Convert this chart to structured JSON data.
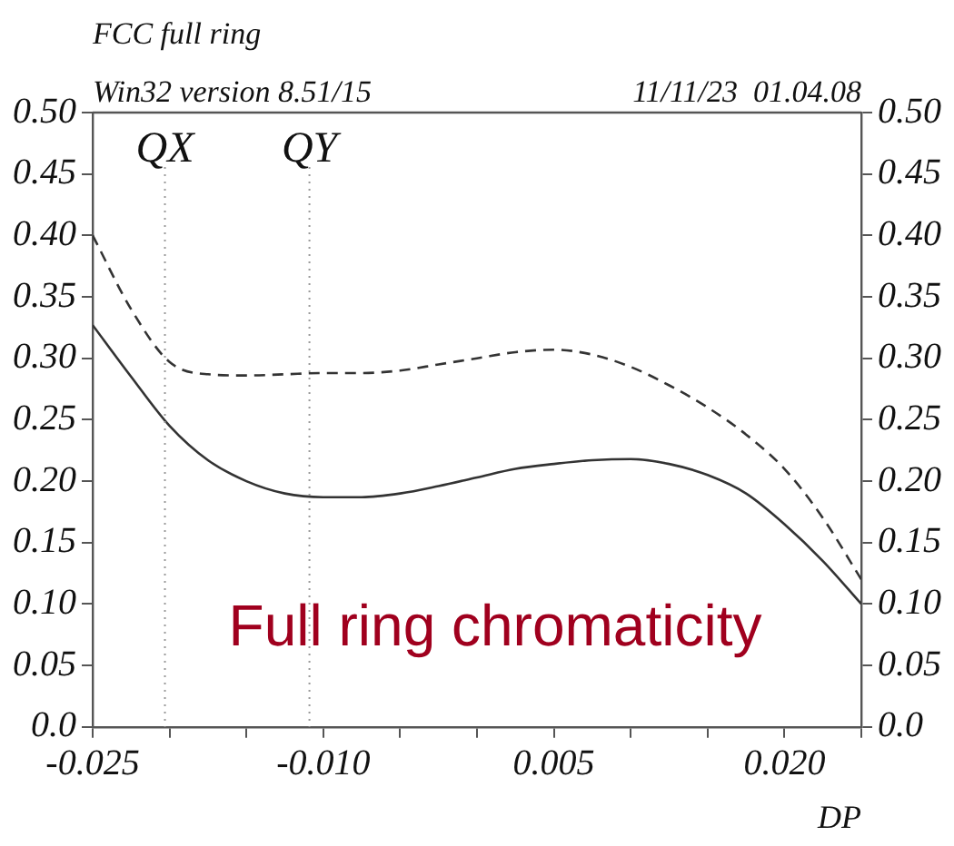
{
  "chart_data": {
    "type": "line",
    "title": "FCC full ring",
    "subtitle": "Win32 version 8.51/15",
    "xlabel": "DP",
    "annotations": [
      "11/11/23  01.04.08",
      "Full ring chromaticity"
    ],
    "x": [
      -0.025,
      -0.0225,
      -0.02,
      -0.0175,
      -0.015,
      -0.0125,
      -0.01,
      -0.0075,
      -0.005,
      -0.0025,
      0,
      0.0025,
      0.005,
      0.0075,
      0.01,
      0.0125,
      0.015,
      0.0175,
      0.02,
      0.0225,
      0.025
    ],
    "series": [
      {
        "color": "#333333",
        "line_style": "solid",
        "values": [
          0.327,
          0.285,
          0.245,
          0.217,
          0.2,
          0.19,
          0.187,
          0.187,
          0.19,
          0.196,
          0.203,
          0.21,
          0.214,
          0.217,
          0.218,
          0.214,
          0.205,
          0.19,
          0.165,
          0.135,
          0.1
        ]
      },
      {
        "color": "#333333",
        "line_style": "dashed",
        "values": [
          0.4,
          0.34,
          0.297,
          0.287,
          0.286,
          0.287,
          0.288,
          0.288,
          0.29,
          0.295,
          0.3,
          0.305,
          0.307,
          0.303,
          0.293,
          0.278,
          0.26,
          0.238,
          0.21,
          0.17,
          0.12
        ]
      }
    ],
    "xlim": [
      -0.025,
      0.025
    ],
    "xticks": [
      -0.025,
      {
        "value": -0.02,
        "label": null
      },
      {
        "value": -0.015,
        "label": null
      },
      {
        "value": -0.01,
        "label": "-0.010"
      },
      {
        "value": -0.005,
        "label": null
      },
      {
        "value": 0,
        "label": null
      },
      0.005,
      {
        "value": 0.01,
        "label": null
      },
      {
        "value": 0.015,
        "label": null
      },
      {
        "value": 0.02,
        "label": "0.020"
      },
      {
        "value": 0.025,
        "label": null
      }
    ],
    "ylim": [
      0,
      0.5
    ],
    "yticks": [
      {
        "value": 0,
        "label": "0.0"
      },
      0.05,
      {
        "value": 0.1,
        "label": "0.10"
      },
      0.15,
      {
        "value": 0.2,
        "label": "0.20"
      },
      0.25,
      {
        "value": 0.3,
        "label": "0.30"
      },
      0.35,
      {
        "value": 0.4,
        "label": "0.40"
      },
      0.45,
      {
        "value": 0.5,
        "label": "0.50"
      }
    ],
    "y2lim": [
      0,
      0.5
    ],
    "y2ticks": [
      {
        "value": 0,
        "label": "0.0"
      },
      0.05,
      {
        "value": 0.1,
        "label": "0.10"
      },
      0.15,
      {
        "value": 0.2,
        "label": "0.20"
      },
      0.25,
      {
        "value": 0.3,
        "label": "0.30"
      },
      0.35,
      {
        "value": 0.4,
        "label": "0.40"
      },
      0.45,
      {
        "value": 0.5,
        "label": "0.50"
      }
    ],
    "ref_lines": [
      {
        "axis": "x",
        "value": -0.0203,
        "label": "QX",
        "color": "#999999",
        "line_style": "dotted"
      },
      {
        "axis": "x",
        "value": -0.0109,
        "label": "QY",
        "color": "#999999",
        "line_style": "dotted"
      }
    ],
    "grid": false,
    "legend": false,
    "marker": "none"
  }
}
